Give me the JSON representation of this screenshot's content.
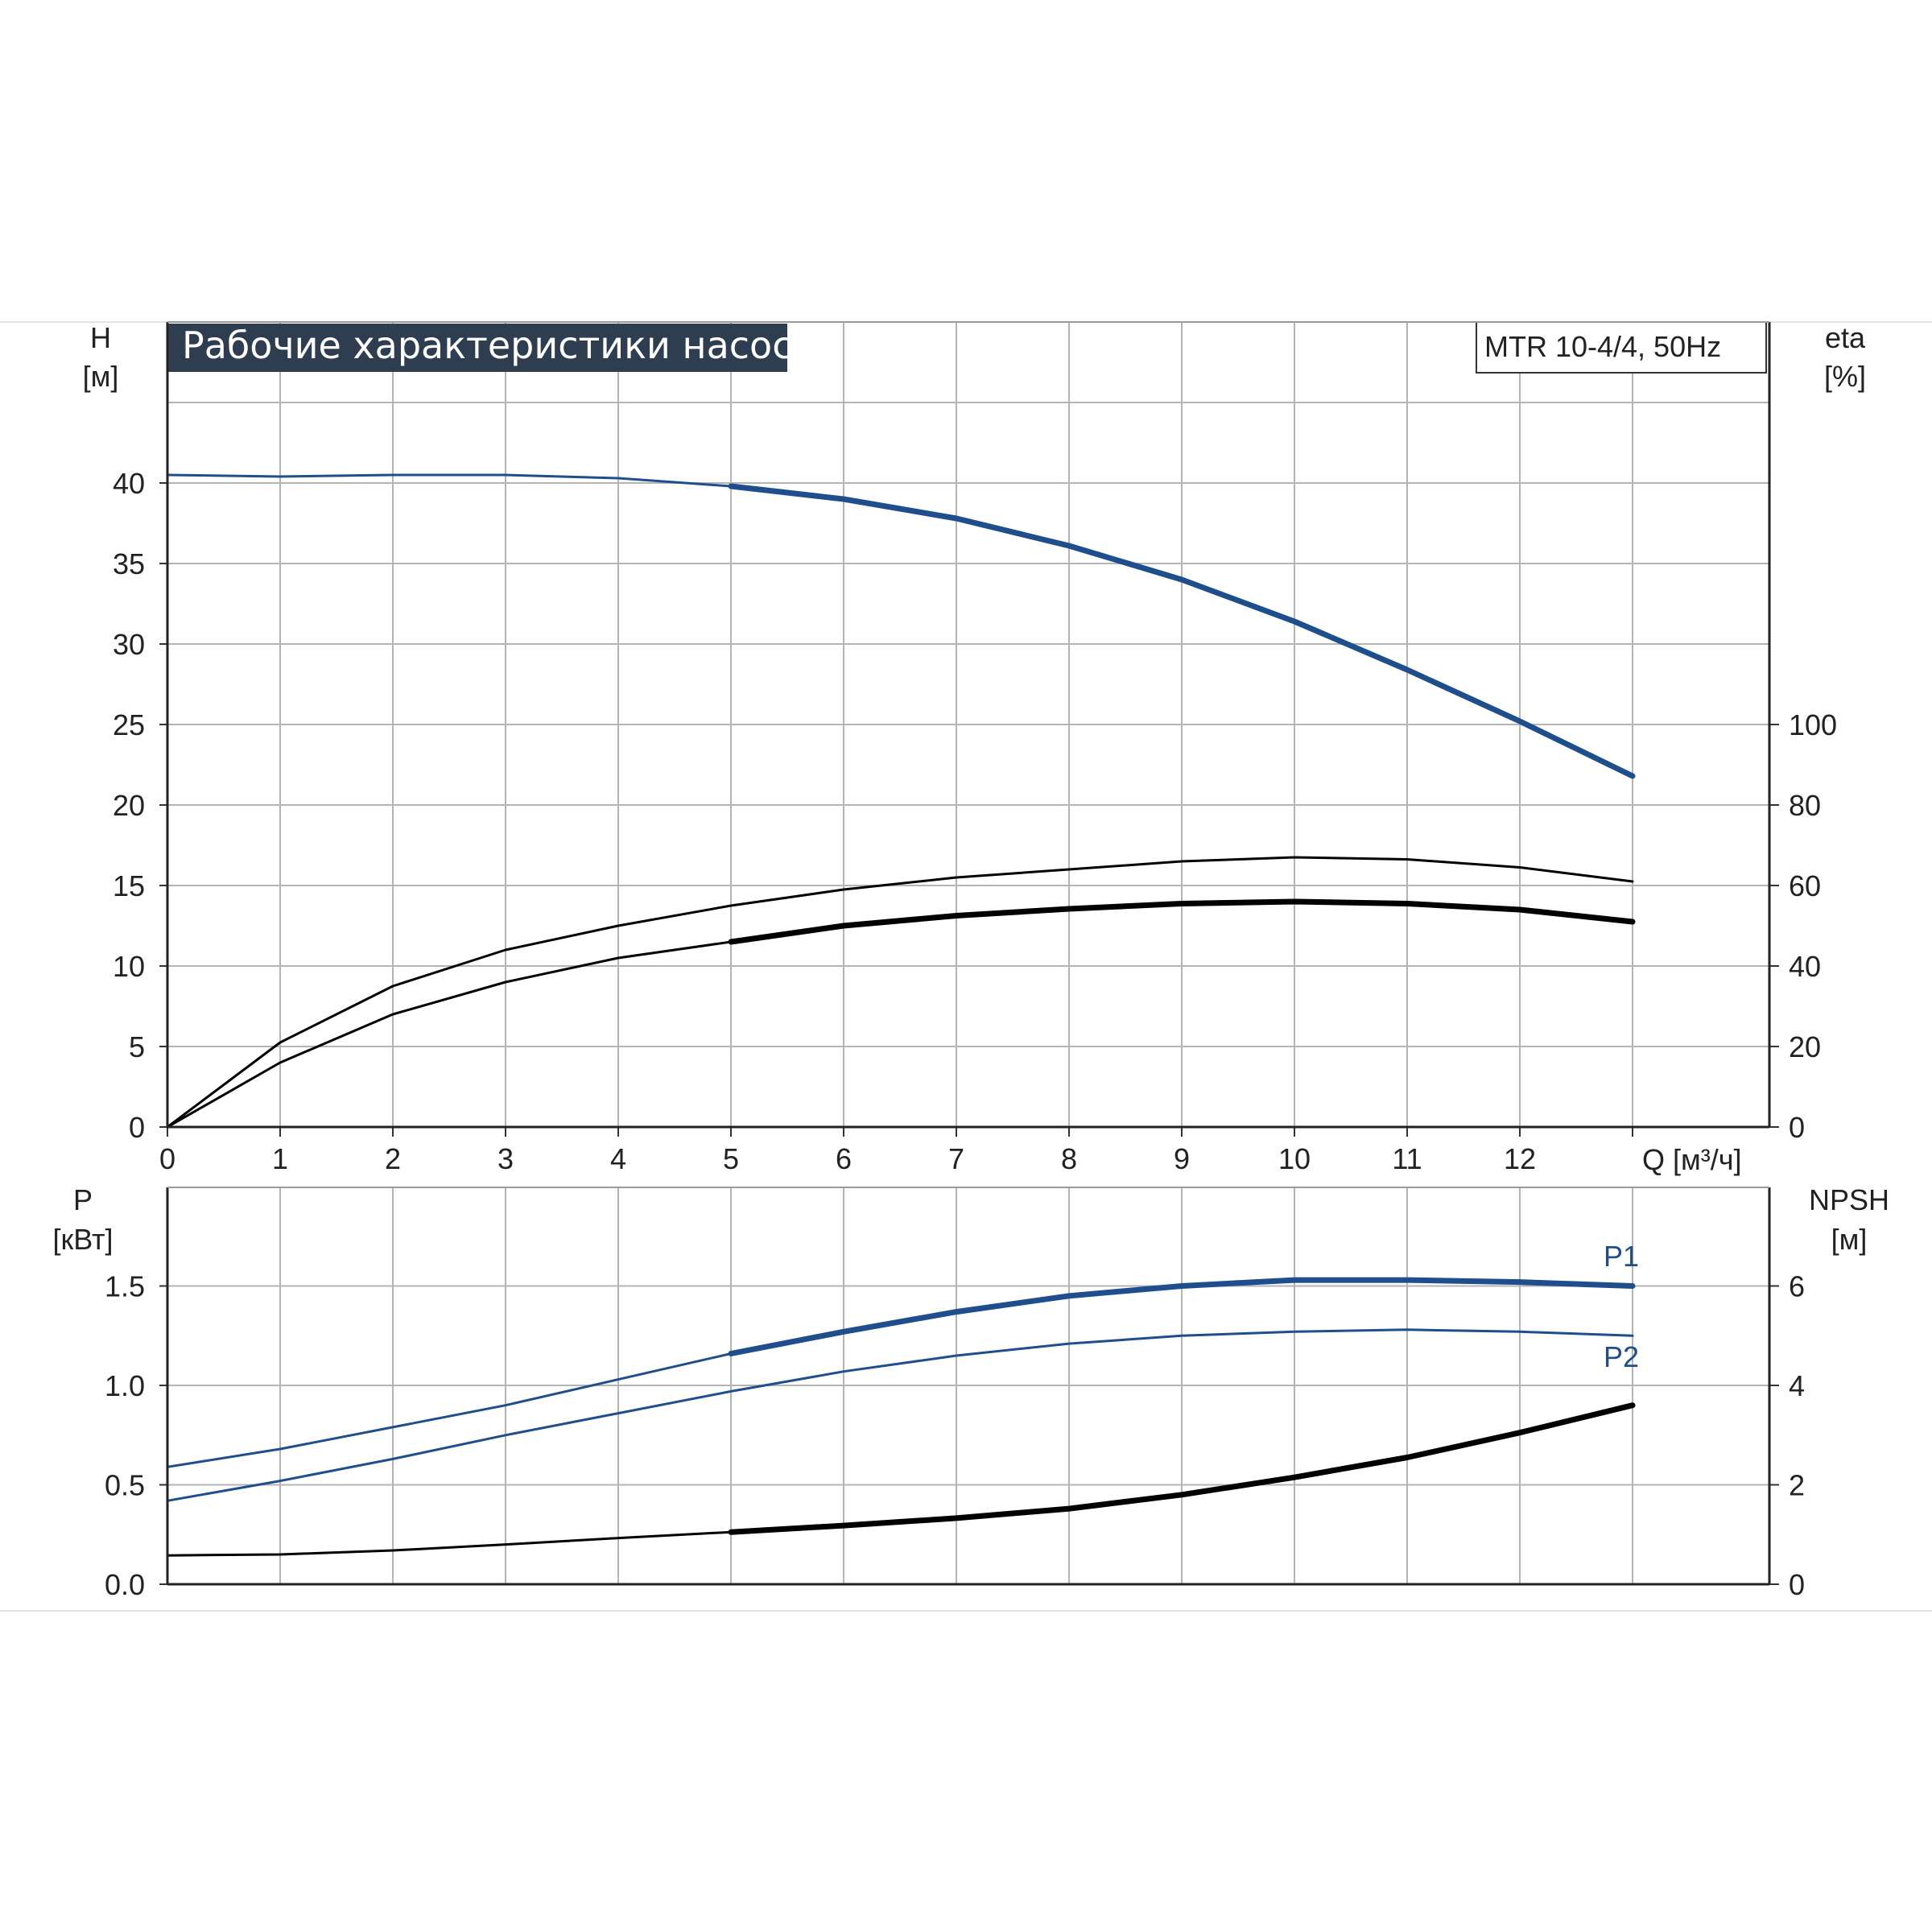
{
  "title": "Рабочие характеристики насоса",
  "model_label": "MTR 10-4/4, 50Hz",
  "colors": {
    "blue": "#1f4e8c",
    "black": "#000000",
    "grid": "#b4b4b4",
    "title_bg": "#2e3e50",
    "title_fg": "#ffffff"
  },
  "chart_data": [
    {
      "type": "line",
      "name": "head-and-efficiency",
      "ylabel_left": [
        "H",
        "[м]"
      ],
      "ylabel_right": [
        "eta",
        "[%]"
      ],
      "xlabel": "Q [м³/ч]",
      "xlim": [
        0,
        14
      ],
      "ylim_left": [
        0,
        45
      ],
      "ylim_right": [
        0,
        125
      ],
      "x_ticks": [
        0,
        1,
        2,
        3,
        4,
        5,
        6,
        7,
        8,
        9,
        10,
        11,
        12
      ],
      "y_ticks_left": [
        0,
        5,
        10,
        15,
        20,
        25,
        30,
        35,
        40
      ],
      "y_ticks_right": [
        0,
        20,
        40,
        60,
        80,
        100
      ],
      "grid": true,
      "series": [
        {
          "axis": "left",
          "color": "blue",
          "heavy_from": 5,
          "x": [
            0,
            1,
            2,
            3,
            4,
            5,
            6,
            7,
            8,
            9,
            10,
            11,
            12,
            13
          ],
          "y": [
            40.5,
            40.4,
            40.5,
            40.5,
            40.3,
            39.8,
            39.0,
            37.8,
            36.1,
            34.0,
            31.4,
            28.4,
            25.2,
            21.8
          ]
        },
        {
          "axis": "right",
          "color": "black",
          "heavy_from": 99,
          "x": [
            0,
            1,
            2,
            3,
            4,
            5,
            6,
            7,
            8,
            9,
            10,
            11,
            12,
            13
          ],
          "y": [
            0,
            21,
            35,
            44,
            50,
            55,
            59,
            62,
            64,
            66,
            67,
            66.5,
            64.5,
            61
          ]
        },
        {
          "axis": "right",
          "color": "black",
          "heavy_from": 5,
          "x": [
            0,
            1,
            2,
            3,
            4,
            5,
            6,
            7,
            8,
            9,
            10,
            11,
            12,
            13
          ],
          "y": [
            0,
            16,
            28,
            36,
            42,
            46,
            50,
            52.5,
            54.2,
            55.5,
            56,
            55.5,
            54,
            51
          ]
        }
      ]
    },
    {
      "type": "line",
      "name": "power-and-npsh",
      "ylabel_left": [
        "P",
        "[кВт]"
      ],
      "ylabel_right": [
        "NPSH",
        "[м]"
      ],
      "xlim": [
        0,
        14
      ],
      "ylim_left": [
        0,
        2.0
      ],
      "ylim_right": [
        0,
        8
      ],
      "y_ticks_left": [
        "0.0",
        "0.5",
        "1.0",
        "1.5"
      ],
      "y_ticks_right": [
        0,
        2,
        4,
        6
      ],
      "grid": true,
      "series": [
        {
          "name": "P1",
          "axis": "left",
          "color": "blue",
          "heavy_from": 5,
          "x": [
            0,
            1,
            2,
            3,
            4,
            5,
            6,
            7,
            8,
            9,
            10,
            11,
            12,
            13
          ],
          "y": [
            0.59,
            0.68,
            0.79,
            0.9,
            1.03,
            1.16,
            1.27,
            1.37,
            1.45,
            1.5,
            1.53,
            1.53,
            1.52,
            1.5
          ]
        },
        {
          "name": "P2",
          "axis": "left",
          "color": "blue",
          "heavy_from": 99,
          "x": [
            0,
            1,
            2,
            3,
            4,
            5,
            6,
            7,
            8,
            9,
            10,
            11,
            12,
            13
          ],
          "y": [
            0.42,
            0.52,
            0.63,
            0.75,
            0.86,
            0.97,
            1.07,
            1.15,
            1.21,
            1.25,
            1.27,
            1.28,
            1.27,
            1.25
          ]
        },
        {
          "axis": "right",
          "color": "black",
          "heavy_from": 5,
          "x": [
            0,
            1,
            2,
            3,
            4,
            5,
            6,
            7,
            8,
            9,
            10,
            11,
            12,
            13
          ],
          "y": [
            0.58,
            0.6,
            0.68,
            0.8,
            0.93,
            1.05,
            1.18,
            1.33,
            1.52,
            1.8,
            2.15,
            2.55,
            3.05,
            3.6
          ]
        }
      ]
    }
  ]
}
